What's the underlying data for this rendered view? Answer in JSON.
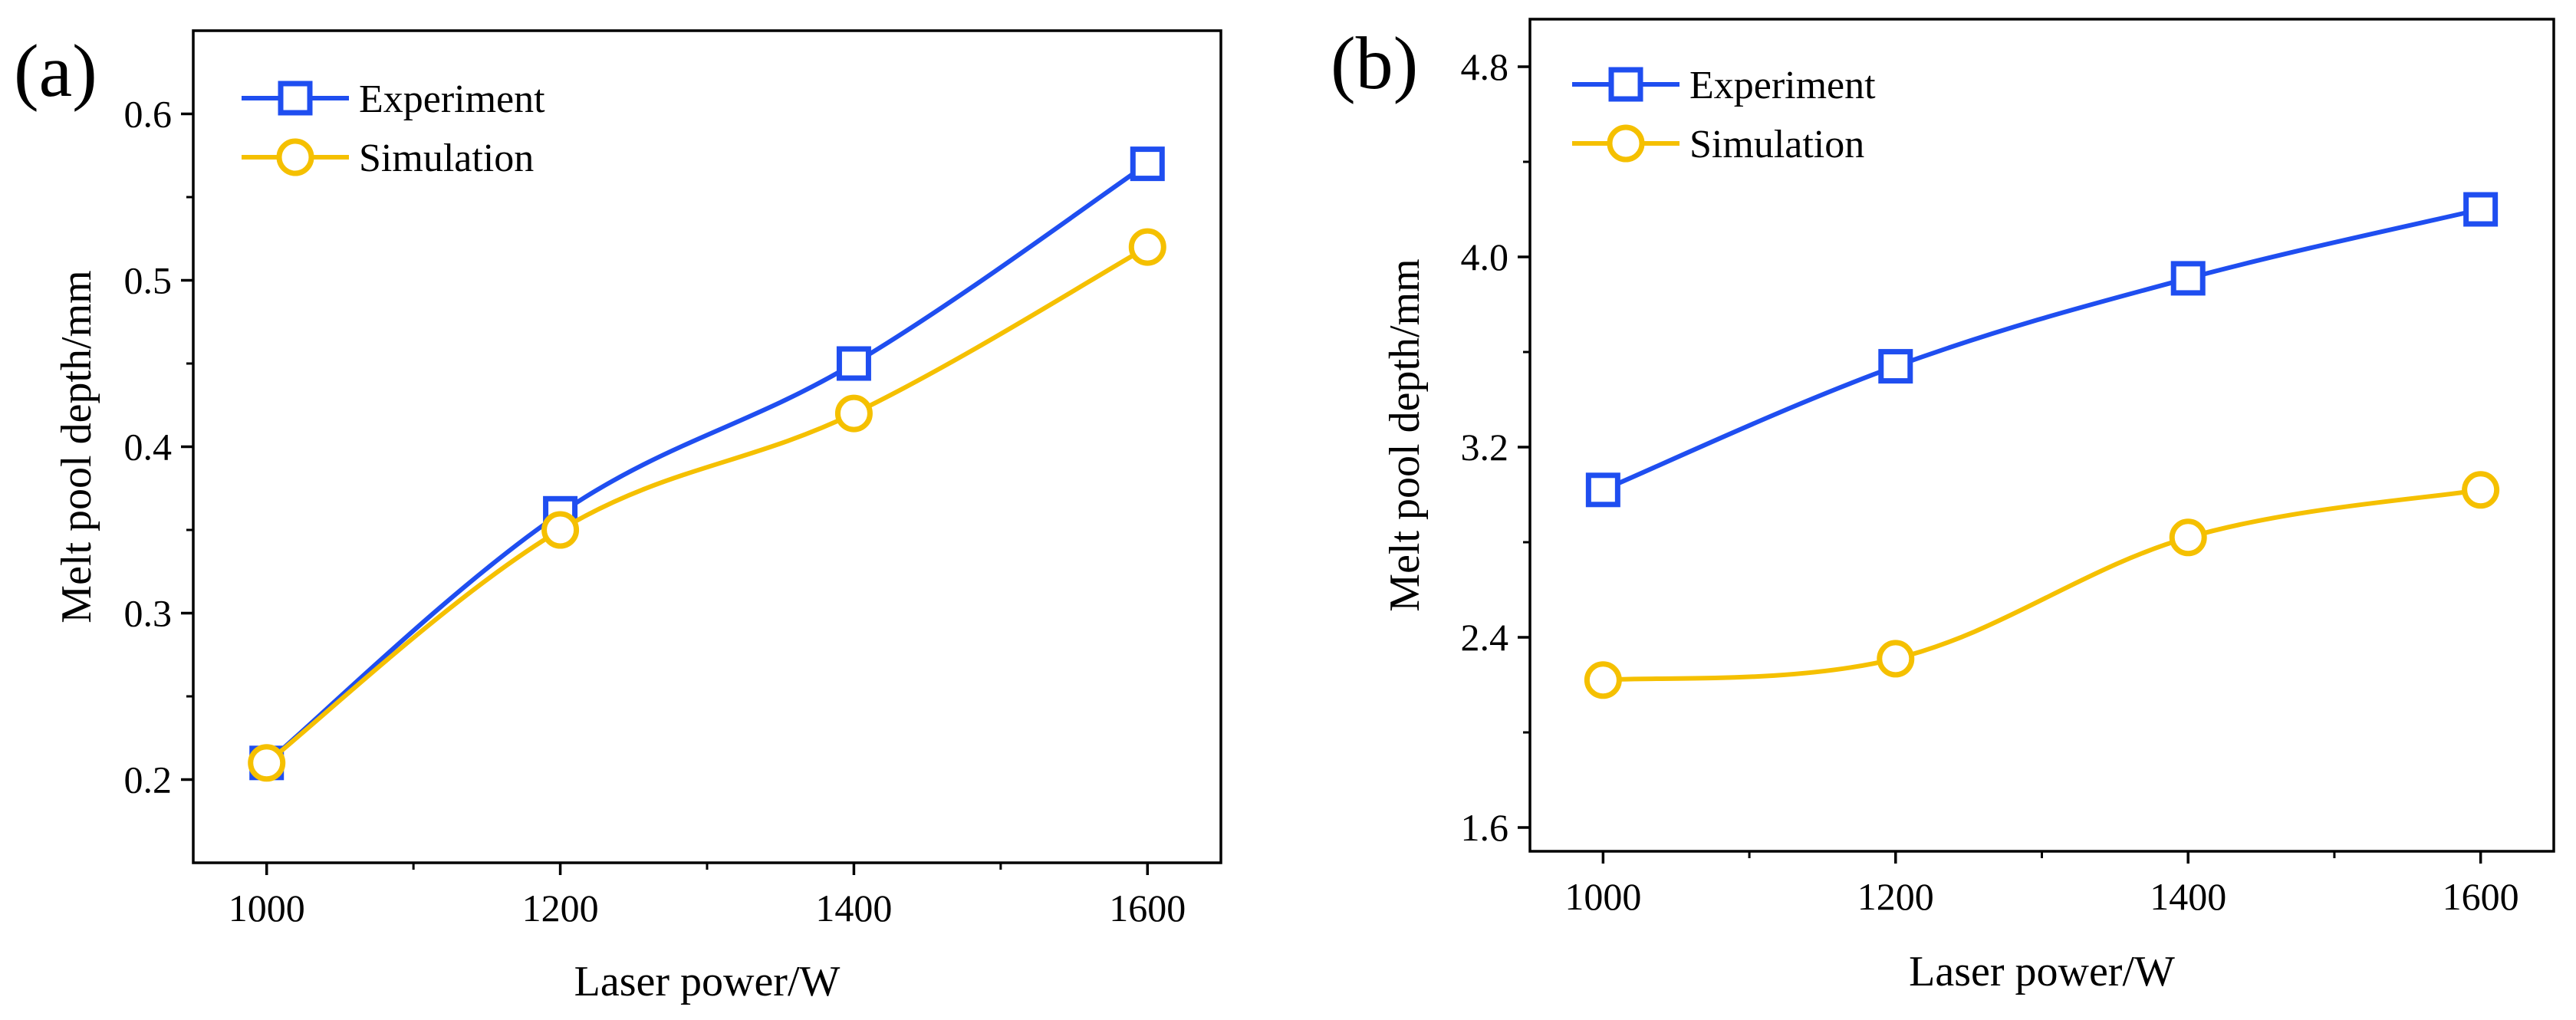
{
  "chart_data": [
    {
      "type": "line",
      "panel_label": "(a)",
      "title": "",
      "xlabel": "Laser power/W",
      "ylabel": "Melt pool depth/mm",
      "xlim": [
        950,
        1650
      ],
      "ylim": [
        0.15,
        0.65
      ],
      "xticks": [
        1000,
        1200,
        1400,
        1600
      ],
      "xtick_labels": [
        "1000",
        "1200",
        "1400",
        "1600"
      ],
      "yticks": [
        0.2,
        0.3,
        0.4,
        0.5,
        0.6
      ],
      "ytick_labels": [
        "0.2",
        "0.3",
        "0.4",
        "0.5",
        "0.6"
      ],
      "grid": false,
      "legend_position": "top-left",
      "x": [
        1000,
        1200,
        1400,
        1600
      ],
      "series": [
        {
          "name": "Experiment",
          "values": [
            0.21,
            0.36,
            0.45,
            0.57
          ],
          "color": "#1f4ef0",
          "marker": "square"
        },
        {
          "name": "Simulation",
          "values": [
            0.21,
            0.35,
            0.42,
            0.52
          ],
          "color": "#f5c000",
          "marker": "circle"
        }
      ]
    },
    {
      "type": "line",
      "panel_label": "(b)",
      "title": "",
      "xlabel": "Laser power/W",
      "ylabel": "Melt pool depth/mm",
      "xlim": [
        950,
        1650
      ],
      "ylim": [
        1.5,
        5.0
      ],
      "xticks": [
        1000,
        1200,
        1400,
        1600
      ],
      "xtick_labels": [
        "1000",
        "1200",
        "1400",
        "1600"
      ],
      "yticks": [
        1.6,
        2.4,
        3.2,
        4.0,
        4.8
      ],
      "ytick_labels": [
        "1.6",
        "2.4",
        "3.2",
        "4.0",
        "4.8"
      ],
      "grid": false,
      "legend_position": "top-left",
      "x": [
        1000,
        1200,
        1400,
        1600
      ],
      "series": [
        {
          "name": "Experiment",
          "values": [
            3.02,
            3.54,
            3.91,
            4.2
          ],
          "color": "#1f4ef0",
          "marker": "square"
        },
        {
          "name": "Simulation",
          "values": [
            2.22,
            2.31,
            2.82,
            3.02
          ],
          "color": "#f5c000",
          "marker": "circle"
        }
      ]
    }
  ]
}
